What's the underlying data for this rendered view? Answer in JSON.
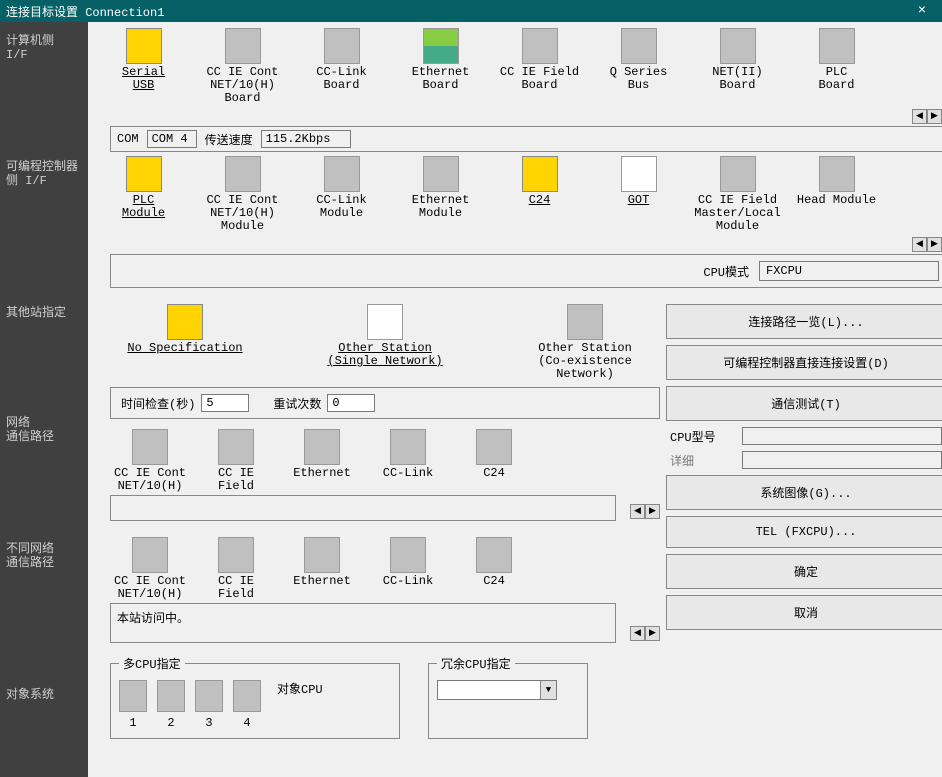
{
  "title": "连接目标设置 Connection1",
  "close_glyph": "×",
  "sidebar": {
    "pc_side": "计算机侧\nI/F",
    "plc_side": "可编程控制器侧 I/F",
    "other_station": "其他站指定",
    "network_route": "网络\n通信路径",
    "diff_network": "不同网络\n通信路径",
    "target_system": "对象系统"
  },
  "row1": {
    "items": [
      {
        "label": "Serial\nUSB",
        "ul": true,
        "style": "yellow"
      },
      {
        "label": "CC IE Cont\nNET/10(H)\nBoard"
      },
      {
        "label": "CC-Link\nBoard"
      },
      {
        "label": "Ethernet\nBoard",
        "style": "colored"
      },
      {
        "label": "CC IE Field\nBoard"
      },
      {
        "label": "Q Series\nBus"
      },
      {
        "label": "NET(II)\nBoard"
      },
      {
        "label": "PLC\nBoard"
      }
    ]
  },
  "com_bar": {
    "com_label": "COM",
    "com_value": "COM 4",
    "speed_label": "传送速度",
    "speed_value": "115.2Kbps"
  },
  "row2": {
    "items": [
      {
        "label": "PLC\nModule",
        "ul": true,
        "style": "yellow"
      },
      {
        "label": "CC IE Cont\nNET/10(H)\nModule"
      },
      {
        "label": "CC-Link\nModule"
      },
      {
        "label": "Ethernet\nModule"
      },
      {
        "label": "C24",
        "ul": true,
        "style": "yellow"
      },
      {
        "label": "GOT",
        "ul": true,
        "style": "white"
      },
      {
        "label": "CC IE Field\nMaster/Local\nModule"
      },
      {
        "label": "Head Module"
      }
    ]
  },
  "cpu_mode": {
    "label": "CPU模式",
    "value": "FXCPU"
  },
  "other_station": {
    "items": [
      {
        "label": "No Specification",
        "ul": true,
        "style": "yellow"
      },
      {
        "label": "Other Station\n(Single Network)",
        "ul": true,
        "style": "white"
      },
      {
        "label": "Other Station\n(Co-existence Network)"
      }
    ]
  },
  "check": {
    "time_label": "时间检查(秒)",
    "time_value": "5",
    "retry_label": "重试次数",
    "retry_value": "0"
  },
  "net_route": {
    "items": [
      {
        "label": "CC IE Cont\nNET/10(H)"
      },
      {
        "label": "CC IE\nField"
      },
      {
        "label": "Ethernet"
      },
      {
        "label": "CC-Link"
      },
      {
        "label": "C24"
      }
    ],
    "box_text": ""
  },
  "diff_route": {
    "items": [
      {
        "label": "CC IE Cont\nNET/10(H)"
      },
      {
        "label": "CC IE\nField"
      },
      {
        "label": "Ethernet"
      },
      {
        "label": "CC-Link"
      },
      {
        "label": "C24"
      }
    ],
    "box_text": "本站访问中。"
  },
  "buttons": {
    "conn_list": "连接路径一览(L)...",
    "direct_conn": "可编程控制器直接连接设置(D)",
    "comm_test": "通信测试(T)",
    "cpu_model_label": "CPU型号",
    "detail_label": "详细",
    "system_image": "系统图像(G)...",
    "tel": "TEL (FXCPU)...",
    "ok": "确定",
    "cancel": "取消"
  },
  "multi_cpu": {
    "legend": "多CPU指定",
    "target_label": "对象CPU",
    "nums": [
      "1",
      "2",
      "3",
      "4"
    ]
  },
  "redundant_cpu": {
    "legend": "冗余CPU指定"
  },
  "arrows": {
    "left": "◀",
    "right": "▶"
  }
}
